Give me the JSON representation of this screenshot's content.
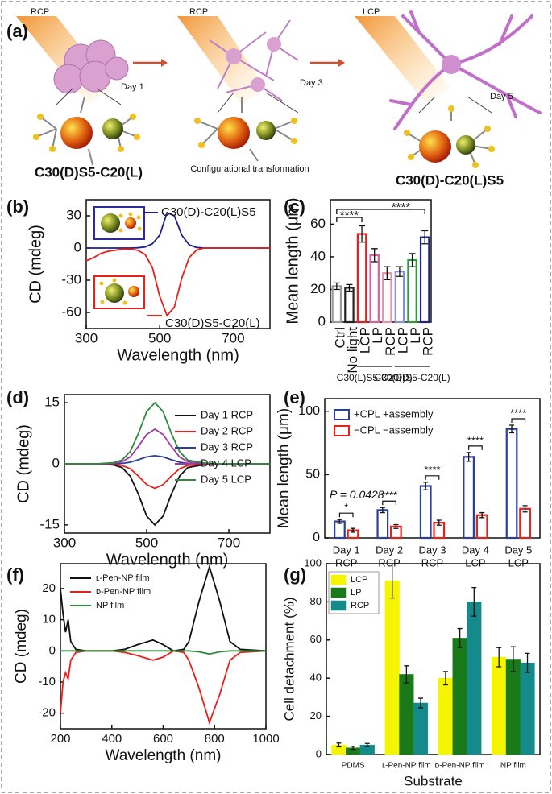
{
  "illustration": {
    "panel": "(a)",
    "light_1": "RCP",
    "light_2": "RCP",
    "light_3": "LCP",
    "day_1": "Day 1",
    "day_3": "Day 3",
    "day_5": "Day 5",
    "formula_1": "C30(D)S5-C20(L)",
    "caption_2": "Configurational transformation",
    "formula_3": "C30(D)-C20(L)S5"
  },
  "chart_data": [
    {
      "type": "line",
      "panel": "(b)",
      "x_label": "Wavelength (nm)",
      "y_label": "CD (mdeg)",
      "x": [
        300,
        320,
        340,
        360,
        380,
        400,
        420,
        440,
        460,
        480,
        500,
        520,
        540,
        560,
        580,
        600,
        620,
        640,
        660,
        680,
        700,
        720,
        740,
        760,
        780,
        800
      ],
      "series": [
        {
          "name": "C30(D)-C20(L)S5",
          "color": "#1f1f8c",
          "values": [
            0,
            0,
            0,
            0,
            0,
            0,
            0,
            0.2,
            1,
            4,
            12,
            33,
            30,
            12,
            3,
            0.5,
            0,
            0,
            0,
            0,
            0,
            0,
            0,
            0,
            0,
            0
          ]
        },
        {
          "name": "C30(D)S5-C20(L)",
          "color": "#e8201c",
          "values": [
            -12,
            -9,
            -5,
            -3,
            -2,
            -1,
            -1,
            -2,
            -6,
            -18,
            -45,
            -63,
            -55,
            -28,
            -9,
            -2,
            0,
            0,
            0,
            0,
            0,
            0,
            0,
            0,
            0,
            0
          ]
        }
      ],
      "xlim": [
        300,
        800
      ],
      "xticks": [
        300,
        500,
        700
      ],
      "ylim": [
        -75,
        45
      ],
      "yticks": [
        -60,
        -30,
        0,
        30
      ]
    },
    {
      "type": "bar",
      "panel": "(c)",
      "y_label": "Mean length (μm)",
      "categories": [
        "Ctrl",
        "No light",
        "LCP",
        "LP",
        "RCP",
        "LCP",
        "LP",
        "RCP"
      ],
      "values": [
        22,
        21,
        54,
        41,
        30,
        31,
        38,
        52
      ],
      "errors": [
        2,
        2,
        5,
        4,
        4,
        3,
        4,
        4
      ],
      "colors": [
        "#9a9a9a",
        "#222222",
        "#e8201c",
        "#e0609a",
        "#e890a8",
        "#8c8cd8",
        "#2e9a3c",
        "#1f1f8c"
      ],
      "bar_style": "outline",
      "group_labels": [
        "C30(L)S5-C20(D)",
        "C30(D)S5-C20(L)"
      ],
      "annotations": [
        "****",
        "****"
      ],
      "ylim": [
        0,
        75
      ],
      "yticks": [
        0,
        20,
        40,
        60
      ]
    },
    {
      "type": "line",
      "panel": "(d)",
      "x_label": "Wavelength (nm)",
      "y_label": "CD (mdeg)",
      "x": [
        300,
        340,
        380,
        420,
        440,
        460,
        480,
        500,
        520,
        540,
        560,
        580,
        600,
        640,
        680,
        720,
        760,
        800
      ],
      "series": [
        {
          "name": "Day 1 RCP",
          "color": "#111111",
          "values": [
            0,
            0,
            0,
            -0.3,
            -0.9,
            -3,
            -7.5,
            -12.8,
            -15,
            -12.8,
            -7.5,
            -3,
            -0.9,
            -0.2,
            0,
            0,
            0,
            0
          ]
        },
        {
          "name": "Day 2 RCP",
          "color": "#e8201c",
          "values": [
            0,
            0,
            0,
            -0.1,
            -0.4,
            -1.2,
            -3,
            -5.1,
            -6,
            -5.1,
            -3,
            -1.2,
            -0.4,
            -0.1,
            0,
            0,
            0,
            0
          ]
        },
        {
          "name": "Day 3 RCP",
          "color": "#2b3e9a",
          "values": [
            0,
            0,
            0,
            0,
            0.1,
            0.4,
            1,
            1.7,
            2,
            1.7,
            1,
            0.4,
            0.1,
            0,
            0,
            0,
            0,
            0
          ]
        },
        {
          "name": "Day 4 LCP",
          "color": "#a03ca8",
          "values": [
            0,
            0,
            0,
            0.2,
            0.5,
            1.7,
            4.3,
            7.2,
            8.5,
            7.2,
            4.3,
            1.7,
            0.5,
            0.1,
            0,
            0,
            0,
            0
          ]
        },
        {
          "name": "Day 5 LCP",
          "color": "#2e8a3c",
          "values": [
            0,
            0,
            0,
            0.3,
            0.9,
            3,
            7.5,
            12.8,
            15,
            12.8,
            7.5,
            3,
            0.9,
            0.2,
            0,
            0,
            0,
            0
          ]
        }
      ],
      "legend": "right",
      "xlim": [
        300,
        800
      ],
      "xticks": [
        300,
        500,
        700
      ],
      "ylim": [
        -17,
        17
      ],
      "yticks": [
        -15,
        0,
        15
      ]
    },
    {
      "type": "bar",
      "panel": "(e)",
      "y_label": "Mean length (μm)",
      "categories": [
        [
          "Day 1",
          "RCP"
        ],
        [
          "Day 2",
          "RCP"
        ],
        [
          "Day 3",
          "RCP"
        ],
        [
          "Day 4",
          "LCP"
        ],
        [
          "Day 5",
          "LCP"
        ]
      ],
      "series": [
        {
          "name": "+CPL +assembly",
          "color": "#2b3e9a",
          "values": [
            13,
            22,
            41,
            64,
            86
          ],
          "errors": [
            1.5,
            2,
            3,
            3.5,
            3
          ]
        },
        {
          "name": "−CPL −assembly",
          "color": "#e8201c",
          "values": [
            6,
            9,
            12,
            18,
            23
          ],
          "errors": [
            1.5,
            1.5,
            2,
            2,
            2.5
          ]
        }
      ],
      "bar_style": "outline",
      "legend": "upper left",
      "annotations": [
        "P = 0.0428",
        "*",
        "****",
        "****",
        "****",
        "****"
      ],
      "ylim": [
        0,
        110
      ],
      "yticks": [
        0,
        50,
        100
      ]
    },
    {
      "type": "line",
      "panel": "(f)",
      "x_label": "Wavelength (nm)",
      "y_label": "CD (mdeg)",
      "x": [
        200,
        210,
        220,
        230,
        240,
        260,
        300,
        400,
        450,
        500,
        560,
        600,
        640,
        680,
        700,
        740,
        780,
        820,
        860,
        900,
        1000
      ],
      "series": [
        {
          "name": "ʟ-Pen-NP film",
          "color": "#111111",
          "values": [
            20,
            12,
            6,
            10,
            3,
            0.5,
            0,
            0,
            0.5,
            2,
            3.5,
            2,
            0,
            0.5,
            3,
            16,
            27,
            16,
            3,
            0.5,
            0
          ]
        },
        {
          "name": "ᴅ-Pen-NP film",
          "color": "#e8201c",
          "values": [
            -20,
            -10,
            -7,
            -9,
            -3,
            -0.5,
            0,
            0,
            -0.5,
            -1.5,
            -3,
            -2,
            0,
            -0.5,
            -3,
            -12,
            -23,
            -14,
            -3,
            -0.5,
            0
          ]
        },
        {
          "name": "NP film",
          "color": "#2e8a3c",
          "values": [
            0,
            0,
            0,
            0,
            0,
            0,
            0,
            0,
            0,
            0,
            0,
            0,
            0,
            0,
            0,
            -0.3,
            -1,
            -0.3,
            0,
            0,
            0
          ]
        }
      ],
      "legend": "upper left",
      "xlim": [
        200,
        1000
      ],
      "xticks": [
        200,
        400,
        600,
        800,
        1000
      ],
      "ylim": [
        -25,
        28
      ],
      "yticks": [
        -20,
        -10,
        0,
        10,
        20
      ]
    },
    {
      "type": "bar",
      "panel": "(g)",
      "x_label": "Substrate",
      "y_label": "Cell detachment (%)",
      "categories": [
        "PDMS",
        "ʟ-Pen-NP film",
        "ᴅ-Pen-NP film",
        "NP film"
      ],
      "series": [
        {
          "name": "LCP",
          "color": "#f5f500",
          "values": [
            5,
            91,
            40,
            51
          ],
          "errors": [
            1,
            9,
            3.5,
            5
          ]
        },
        {
          "name": "LP",
          "color": "#1a7a1a",
          "values": [
            3.5,
            42,
            61,
            50
          ],
          "errors": [
            0.8,
            4.5,
            5,
            6.5
          ]
        },
        {
          "name": "RCP",
          "color": "#148a8a",
          "values": [
            5,
            27,
            80,
            48
          ],
          "errors": [
            0.8,
            2.5,
            7.5,
            5
          ]
        }
      ],
      "bar_style": "filled",
      "legend": "upper left",
      "ylim": [
        0,
        100
      ],
      "yticks": [
        0,
        20,
        40,
        60,
        80,
        100
      ]
    }
  ]
}
